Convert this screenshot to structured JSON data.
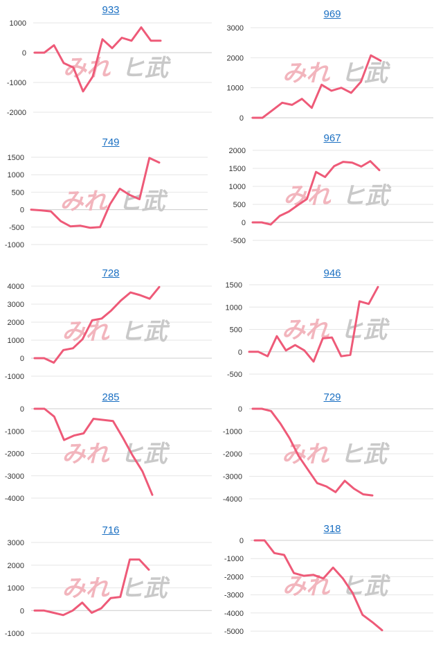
{
  "theme": {
    "line_color": "#ee5a78",
    "title_color": "#1a6fc2",
    "grid_color": "#e6e6e6",
    "zero_line_color": "#cccccc",
    "watermark_pink": "#f2b5bd",
    "watermark_gray": "#c9c9c9"
  },
  "watermark": {
    "left": "みれ",
    "right": "ヒ武"
  },
  "panels": [
    {
      "title": "933"
    },
    {
      "title": "969"
    },
    {
      "title": "749"
    },
    {
      "title": "967"
    },
    {
      "title": "728"
    },
    {
      "title": "946"
    },
    {
      "title": "285"
    },
    {
      "title": "729"
    },
    {
      "title": "716"
    },
    {
      "title": "318"
    }
  ],
  "chart_data": [
    {
      "type": "line",
      "title": "933",
      "yticks": [
        1000,
        0,
        -1000,
        -2000
      ],
      "ylim": [
        -2000,
        1000
      ],
      "values": [
        0,
        0,
        250,
        -350,
        -500,
        -1300,
        -800,
        450,
        150,
        500,
        400,
        850,
        400,
        400
      ]
    },
    {
      "type": "line",
      "title": "969",
      "yticks": [
        3000,
        2000,
        1000,
        0
      ],
      "ylim": [
        0,
        3000
      ],
      "values": [
        0,
        0,
        250,
        500,
        430,
        630,
        330,
        1100,
        900,
        1000,
        830,
        1200,
        2080,
        1900
      ]
    },
    {
      "type": "line",
      "title": "749",
      "yticks": [
        1500,
        1000,
        500,
        0,
        -500,
        -1000
      ],
      "ylim": [
        -1000,
        1500
      ],
      "values": [
        0,
        -20,
        -50,
        -330,
        -480,
        -460,
        -520,
        -500,
        150,
        600,
        420,
        300,
        1480,
        1350
      ]
    },
    {
      "type": "line",
      "title": "967",
      "yticks": [
        2000,
        1500,
        1000,
        500,
        0,
        -500
      ],
      "ylim": [
        -500,
        2000
      ],
      "values": [
        0,
        0,
        -60,
        180,
        300,
        480,
        650,
        1400,
        1260,
        1560,
        1680,
        1660,
        1550,
        1700,
        1450
      ]
    },
    {
      "type": "line",
      "title": "728",
      "yticks": [
        4000,
        3000,
        2000,
        1000,
        0,
        -1000
      ],
      "ylim": [
        -1000,
        4000
      ],
      "values": [
        0,
        0,
        -250,
        450,
        550,
        1050,
        2100,
        2200,
        2650,
        3200,
        3650,
        3500,
        3300,
        3950
      ]
    },
    {
      "type": "line",
      "title": "946",
      "yticks": [
        1500,
        1000,
        500,
        0,
        -500
      ],
      "ylim": [
        -500,
        1500
      ],
      "values": [
        0,
        0,
        -100,
        350,
        30,
        150,
        30,
        -220,
        300,
        320,
        -100,
        -70,
        1130,
        1070,
        1450
      ]
    },
    {
      "type": "line",
      "title": "285",
      "yticks": [
        0,
        -1000,
        -2000,
        -3000,
        -4000
      ],
      "ylim": [
        -4000,
        0
      ],
      "values": [
        0,
        0,
        -350,
        -1400,
        -1200,
        -1100,
        -450,
        -500,
        -550,
        -1300,
        -2100,
        -2800,
        -3850
      ]
    },
    {
      "type": "line",
      "title": "729",
      "yticks": [
        0,
        -1000,
        -2000,
        -3000,
        -4000
      ],
      "ylim": [
        -4000,
        0
      ],
      "values": [
        0,
        0,
        -100,
        -650,
        -1300,
        -2100,
        -2700,
        -3300,
        -3450,
        -3700,
        -3200,
        -3550,
        -3800,
        -3850
      ]
    },
    {
      "type": "line",
      "title": "716",
      "yticks": [
        3000,
        2000,
        1000,
        0,
        -1000
      ],
      "ylim": [
        -1000,
        3000
      ],
      "values": [
        0,
        0,
        -100,
        -200,
        0,
        350,
        -100,
        100,
        550,
        600,
        2250,
        2250,
        1800
      ]
    },
    {
      "type": "line",
      "title": "318",
      "yticks": [
        0,
        -1000,
        -2000,
        -3000,
        -4000,
        -5000
      ],
      "ylim": [
        -5000,
        0
      ],
      "values": [
        0,
        0,
        -700,
        -800,
        -1800,
        -1950,
        -1900,
        -2100,
        -1500,
        -2100,
        -2900,
        -4100,
        -4500,
        -4950
      ]
    }
  ]
}
